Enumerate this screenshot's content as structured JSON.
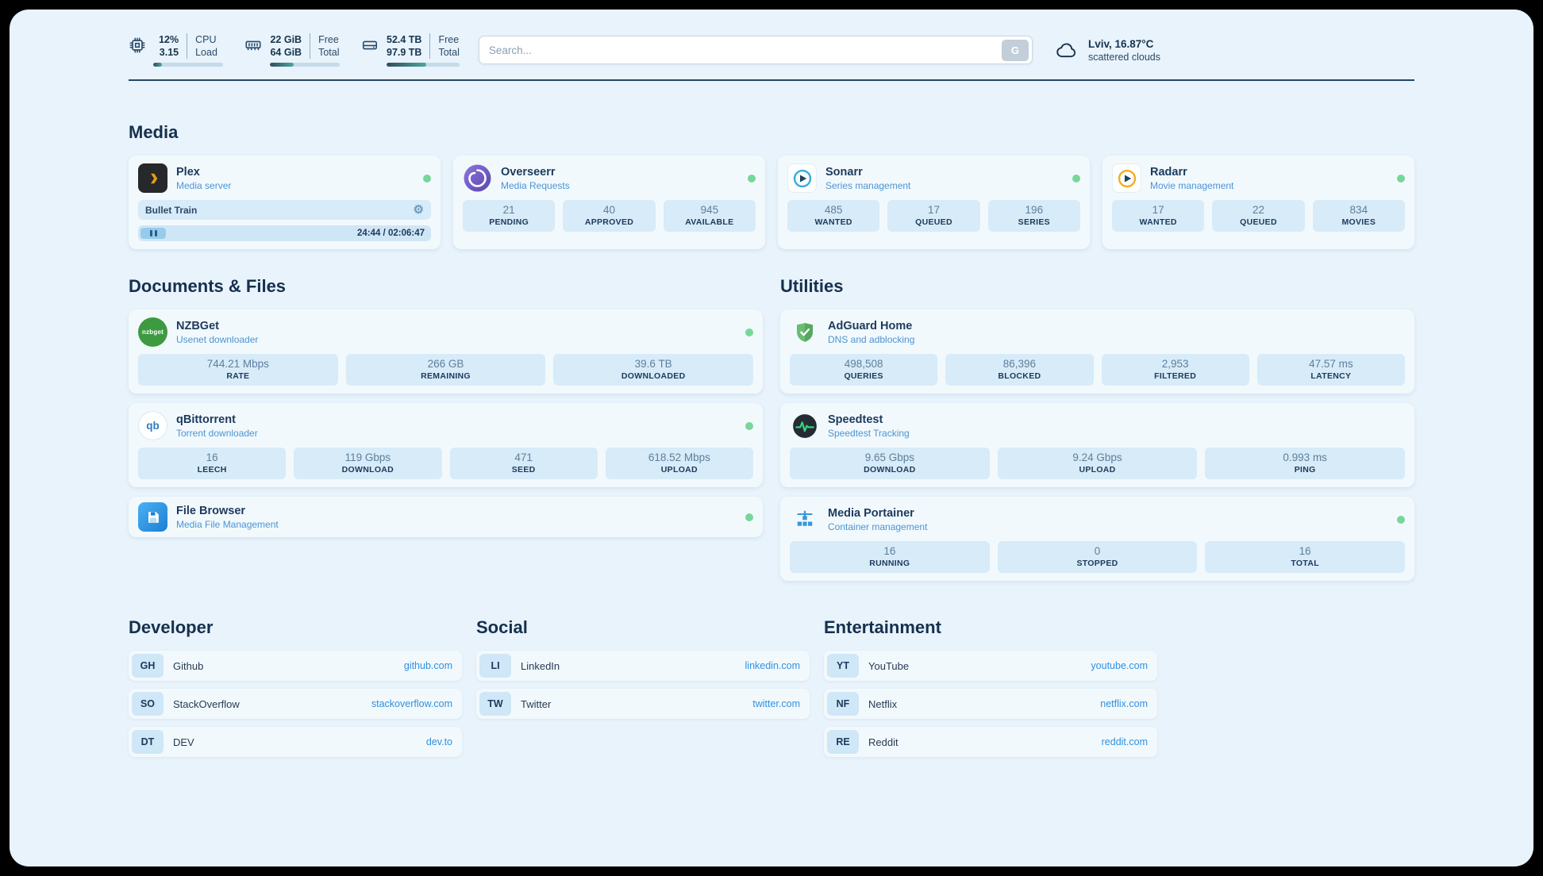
{
  "colors": {
    "background": "#e8f3fb",
    "card": "#f2f9fd",
    "stat_box": "#d7ebf8",
    "heading": "#16304d",
    "subtitle_blue": "#4c94d2",
    "link_blue": "#2f90e0",
    "status_online": "#76d79a",
    "divider": "#284561"
  },
  "topbar": {
    "cpu": {
      "value": "12%",
      "load": "3.15",
      "label_top": "CPU",
      "label_bottom": "Load",
      "percent": 12
    },
    "ram": {
      "free": "22 GiB",
      "total": "64 GiB",
      "label_top": "Free",
      "label_bottom": "Total",
      "percent": 34
    },
    "disk": {
      "free": "52.4 TB",
      "total": "97.9 TB",
      "label_top": "Free",
      "label_bottom": "Total",
      "percent": 54
    },
    "search": {
      "placeholder": "Search...",
      "button_label": "G"
    },
    "weather": {
      "location": "Lviv, 16.87°C",
      "condition": "scattered clouds"
    }
  },
  "icon_labels": {
    "nzbget": "nzbget",
    "qbittorrent": "qb"
  },
  "media": {
    "heading": "Media",
    "cards": [
      {
        "name": "Plex",
        "subtitle": "Media server",
        "now_playing": "Bullet Train",
        "time": "24:44 / 02:06:47"
      },
      {
        "name": "Overseerr",
        "subtitle": "Media Requests",
        "stats": [
          {
            "value": "21",
            "label": "PENDING"
          },
          {
            "value": "40",
            "label": "APPROVED"
          },
          {
            "value": "945",
            "label": "AVAILABLE"
          }
        ]
      },
      {
        "name": "Sonarr",
        "subtitle": "Series management",
        "stats": [
          {
            "value": "485",
            "label": "WANTED"
          },
          {
            "value": "17",
            "label": "QUEUED"
          },
          {
            "value": "196",
            "label": "SERIES"
          }
        ]
      },
      {
        "name": "Radarr",
        "subtitle": "Movie management",
        "stats": [
          {
            "value": "17",
            "label": "WANTED"
          },
          {
            "value": "22",
            "label": "QUEUED"
          },
          {
            "value": "834",
            "label": "MOVIES"
          }
        ]
      }
    ]
  },
  "documents": {
    "heading": "Documents & Files",
    "cards": [
      {
        "name": "NZBGet",
        "subtitle": "Usenet downloader",
        "stats": [
          {
            "value": "744.21 Mbps",
            "label": "RATE"
          },
          {
            "value": "266 GB",
            "label": "REMAINING"
          },
          {
            "value": "39.6 TB",
            "label": "DOWNLOADED"
          }
        ]
      },
      {
        "name": "qBittorrent",
        "subtitle": "Torrent downloader",
        "stats": [
          {
            "value": "16",
            "label": "LEECH"
          },
          {
            "value": "119 Gbps",
            "label": "DOWNLOAD"
          },
          {
            "value": "471",
            "label": "SEED"
          },
          {
            "value": "618.52 Mbps",
            "label": "UPLOAD"
          }
        ]
      },
      {
        "name": "File Browser",
        "subtitle": "Media File Management",
        "stats": []
      }
    ]
  },
  "utilities": {
    "heading": "Utilities",
    "cards": [
      {
        "name": "AdGuard Home",
        "subtitle": "DNS and adblocking",
        "stats": [
          {
            "value": "498,508",
            "label": "QUERIES"
          },
          {
            "value": "86,396",
            "label": "BLOCKED"
          },
          {
            "value": "2,953",
            "label": "FILTERED"
          },
          {
            "value": "47.57 ms",
            "label": "LATENCY"
          }
        ]
      },
      {
        "name": "Speedtest",
        "subtitle": "Speedtest Tracking",
        "stats": [
          {
            "value": "9.65 Gbps",
            "label": "DOWNLOAD"
          },
          {
            "value": "9.24 Gbps",
            "label": "UPLOAD"
          },
          {
            "value": "0.993 ms",
            "label": "PING"
          }
        ]
      },
      {
        "name": "Media Portainer",
        "subtitle": "Container management",
        "stats": [
          {
            "value": "16",
            "label": "RUNNING"
          },
          {
            "value": "0",
            "label": "STOPPED"
          },
          {
            "value": "16",
            "label": "TOTAL"
          }
        ]
      }
    ]
  },
  "bookmarks": [
    {
      "heading": "Developer",
      "items": [
        {
          "badge": "GH",
          "name": "Github",
          "link": "github.com"
        },
        {
          "badge": "SO",
          "name": "StackOverflow",
          "link": "stackoverflow.com"
        },
        {
          "badge": "DT",
          "name": "DEV",
          "link": "dev.to"
        }
      ]
    },
    {
      "heading": "Social",
      "items": [
        {
          "badge": "LI",
          "name": "LinkedIn",
          "link": "linkedin.com"
        },
        {
          "badge": "TW",
          "name": "Twitter",
          "link": "twitter.com"
        }
      ]
    },
    {
      "heading": "Entertainment",
      "items": [
        {
          "badge": "YT",
          "name": "YouTube",
          "link": "youtube.com"
        },
        {
          "badge": "NF",
          "name": "Netflix",
          "link": "netflix.com"
        },
        {
          "badge": "RE",
          "name": "Reddit",
          "link": "reddit.com"
        }
      ]
    }
  ]
}
